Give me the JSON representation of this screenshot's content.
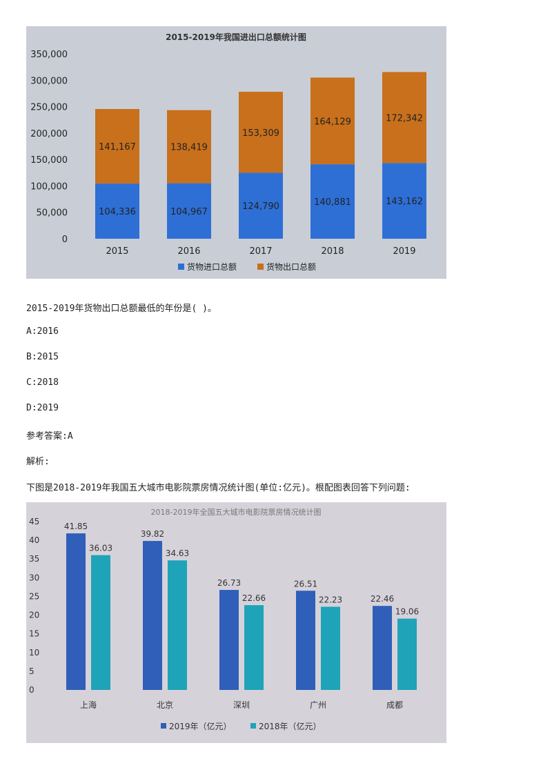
{
  "chart_data": [
    {
      "type": "bar",
      "stacked": true,
      "title": "2015-2019年我国进出口总额统计图",
      "categories": [
        "2015",
        "2016",
        "2017",
        "2018",
        "2019"
      ],
      "series": [
        {
          "name": "货物进口总额",
          "values": [
            104336,
            104967,
            124790,
            140881,
            143162
          ],
          "color": "#2e6fd6"
        },
        {
          "name": "货物出口总额",
          "values": [
            141167,
            138419,
            153309,
            164129,
            172342
          ],
          "color": "#c8701c"
        }
      ],
      "data_labels": [
        [
          "104,336",
          "104,967",
          "124,790",
          "140,881",
          "143,162"
        ],
        [
          "141,167",
          "138,419",
          "153,309",
          "164,129",
          "172,342"
        ]
      ],
      "yticks": [
        "0",
        "50,000",
        "100,000",
        "150,000",
        "200,000",
        "250,000",
        "300,000",
        "350,000"
      ],
      "ylim": [
        0,
        350000
      ],
      "legend": "bottom"
    },
    {
      "type": "bar",
      "title": "2018-2019年全国五大城市电影院票房情况统计图",
      "categories": [
        "上海",
        "北京",
        "深圳",
        "广州",
        "成都"
      ],
      "series": [
        {
          "name": "2019年（亿元）",
          "values": [
            41.85,
            39.82,
            26.73,
            26.51,
            22.46
          ],
          "color": "#2f5fb8"
        },
        {
          "name": "2018年（亿元）",
          "values": [
            36.03,
            34.63,
            22.66,
            22.23,
            19.06
          ],
          "color": "#1fa3b8"
        }
      ],
      "yticks": [
        "0",
        "5",
        "10",
        "15",
        "20",
        "25",
        "30",
        "35",
        "40",
        "45"
      ],
      "ylim": [
        0,
        45
      ],
      "legend": "bottom"
    }
  ],
  "text": {
    "q1": "2015-2019年货物出口总额最低的年份是( )。",
    "a": "A:2016",
    "b": "B:2015",
    "c": "C:2018",
    "d": "D:2019",
    "answer": "参考答案:A",
    "analysis": "解析:",
    "q2": "下图是2018-2019年我国五大城市电影院票房情况统计图(单位:亿元)。根配图表回答下列问题:"
  }
}
